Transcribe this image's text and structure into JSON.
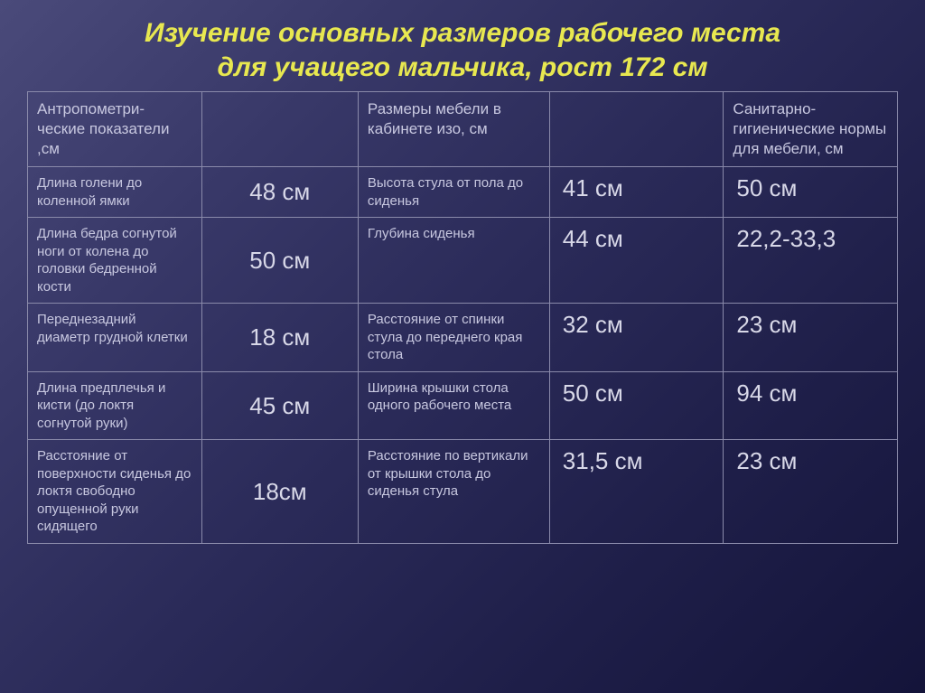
{
  "title_line1": "Изучение основных размеров рабочего места",
  "title_line2": "для учащего мальчика, рост 172 см",
  "headers": {
    "c1": "Антропометри-ческие показатели ,см",
    "c2": "",
    "c3": "Размеры мебели в кабинете изо, см",
    "c4": "",
    "c5": "Санитарно-гигиенические нормы  для мебели, см"
  },
  "rows": [
    {
      "param": "Длина голени до коленной ямки",
      "val": "48 см",
      "furn": "Высота стула от пола до сиденья",
      "meas": "41 см",
      "norm": "50 см"
    },
    {
      "param": "Длина бедра согнутой ноги от колена до головки бедренной кости",
      "val": "50 см",
      "furn": "Глубина сиденья",
      "meas": "44 см",
      "norm": "22,2-33,3"
    },
    {
      "param": "Переднезадний диаметр грудной клетки",
      "val": "18 см",
      "furn": "Расстояние от спинки стула до переднего края стола",
      "meas": "32 см",
      "norm": "23 см"
    },
    {
      "param": "Длина предплечья  и кисти (до локтя согнутой руки)",
      "val": "45 см",
      "furn": "Ширина крышки стола одного рабочего места",
      "meas": "50 см",
      "norm": "94 см"
    },
    {
      "param": "Расстояние от поверхности сиденья до локтя свободно опущенной руки сидящего",
      "val": "18см",
      "furn": "Расстояние по вертикали от крышки стола до сиденья стула",
      "meas": "31,5 см",
      "norm": "23 см"
    }
  ]
}
